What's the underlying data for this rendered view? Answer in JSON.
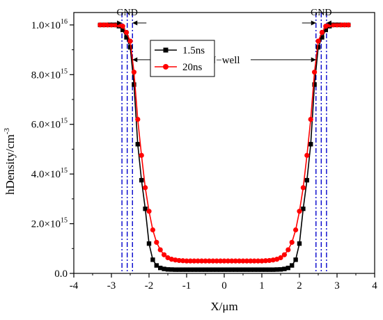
{
  "chart_data": {
    "type": "line",
    "xlabel": "X/μm",
    "ylabel": "hDensity/cm",
    "ylabel_sup": "-3",
    "xlim": [
      -4,
      4
    ],
    "ylim": [
      0,
      1.05e+16
    ],
    "x_ticks": [
      -4,
      -3,
      -2,
      -1,
      0,
      1,
      2,
      3,
      4
    ],
    "x_tick_labels": [
      "-4",
      "-3",
      "-2",
      "-1",
      "0",
      "1",
      "2",
      "3",
      "4"
    ],
    "y_ticks": [
      0,
      2000000000000000.0,
      4000000000000000.0,
      6000000000000000.0,
      8000000000000000.0,
      1e+16
    ],
    "y_tick_labels": [
      {
        "mant": "0.0",
        "exp": ""
      },
      {
        "mant": "2.0×10",
        "exp": "15"
      },
      {
        "mant": "4.0×10",
        "exp": "15"
      },
      {
        "mant": "6.0×10",
        "exp": "15"
      },
      {
        "mant": "8.0×10",
        "exp": "15"
      },
      {
        "mant": "1.0×10",
        "exp": "16"
      }
    ],
    "legend": {
      "placement": "top-left-inside",
      "entries": [
        "1.5ns",
        "20ns"
      ]
    },
    "series": [
      {
        "name": "1.5ns",
        "color": "#000000",
        "marker": "square",
        "x": [
          -3.3,
          -3.2,
          -3.1,
          -3.0,
          -2.9,
          -2.8,
          -2.7,
          -2.6,
          -2.5,
          -2.4,
          -2.3,
          -2.2,
          -2.1,
          -2.0,
          -1.9,
          -1.8,
          -1.7,
          -1.6,
          -1.5,
          -1.4,
          -1.3,
          -1.2,
          -1.1,
          -1.0,
          -0.9,
          -0.8,
          -0.7,
          -0.6,
          -0.5,
          -0.4,
          -0.3,
          -0.2,
          -0.1,
          0.0,
          0.1,
          0.2,
          0.3,
          0.4,
          0.5,
          0.6,
          0.7,
          0.8,
          0.9,
          1.0,
          1.1,
          1.2,
          1.3,
          1.4,
          1.5,
          1.6,
          1.7,
          1.8,
          1.9,
          2.0,
          2.1,
          2.2,
          2.3,
          2.4,
          2.5,
          2.6,
          2.7,
          2.8,
          2.9,
          3.0,
          3.1,
          3.2,
          3.3
        ],
        "y": [
          1e+16,
          1e+16,
          1e+16,
          1e+16,
          1e+16,
          9950000000000000.0,
          9800000000000000.0,
          9500000000000000.0,
          9100000000000000.0,
          7600000000000000.0,
          5200000000000000.0,
          3750000000000000.0,
          2600000000000000.0,
          1200000000000000.0,
          550000000000000.0,
          320000000000000.0,
          220000000000000.0,
          180000000000000.0,
          160000000000000.0,
          155000000000000.0,
          150000000000000.0,
          150000000000000.0,
          150000000000000.0,
          150000000000000.0,
          150000000000000.0,
          150000000000000.0,
          150000000000000.0,
          150000000000000.0,
          150000000000000.0,
          150000000000000.0,
          150000000000000.0,
          150000000000000.0,
          150000000000000.0,
          150000000000000.0,
          150000000000000.0,
          150000000000000.0,
          150000000000000.0,
          150000000000000.0,
          150000000000000.0,
          150000000000000.0,
          150000000000000.0,
          150000000000000.0,
          150000000000000.0,
          150000000000000.0,
          150000000000000.0,
          150000000000000.0,
          150000000000000.0,
          155000000000000.0,
          160000000000000.0,
          180000000000000.0,
          220000000000000.0,
          320000000000000.0,
          550000000000000.0,
          1200000000000000.0,
          2600000000000000.0,
          3750000000000000.0,
          5200000000000000.0,
          7600000000000000.0,
          9100000000000000.0,
          9500000000000000.0,
          9800000000000000.0,
          9950000000000000.0,
          1e+16,
          1e+16,
          1e+16,
          1e+16,
          1e+16
        ]
      },
      {
        "name": "20ns",
        "color": "#ff0000",
        "marker": "circle",
        "x": [
          -3.3,
          -3.2,
          -3.1,
          -3.0,
          -2.9,
          -2.8,
          -2.7,
          -2.6,
          -2.5,
          -2.4,
          -2.3,
          -2.2,
          -2.1,
          -2.0,
          -1.9,
          -1.8,
          -1.7,
          -1.6,
          -1.5,
          -1.4,
          -1.3,
          -1.2,
          -1.1,
          -1.0,
          -0.9,
          -0.8,
          -0.7,
          -0.6,
          -0.5,
          -0.4,
          -0.3,
          -0.2,
          -0.1,
          0.0,
          0.1,
          0.2,
          0.3,
          0.4,
          0.5,
          0.6,
          0.7,
          0.8,
          0.9,
          1.0,
          1.1,
          1.2,
          1.3,
          1.4,
          1.5,
          1.6,
          1.7,
          1.8,
          1.9,
          2.0,
          2.1,
          2.2,
          2.3,
          2.4,
          2.5,
          2.6,
          2.7,
          2.8,
          2.9,
          3.0,
          3.1,
          3.2,
          3.3
        ],
        "y": [
          1e+16,
          1e+16,
          1e+16,
          1e+16,
          1e+16,
          1e+16,
          9950000000000000.0,
          9700000000000000.0,
          9350000000000000.0,
          8100000000000000.0,
          6200000000000000.0,
          4750000000000000.0,
          3450000000000000.0,
          2500000000000000.0,
          1750000000000000.0,
          1250000000000000.0,
          950000000000000.0,
          750000000000000.0,
          630000000000000.0,
          570000000000000.0,
          540000000000000.0,
          520000000000000.0,
          510000000000000.0,
          500000000000000.0,
          500000000000000.0,
          500000000000000.0,
          500000000000000.0,
          500000000000000.0,
          500000000000000.0,
          500000000000000.0,
          500000000000000.0,
          500000000000000.0,
          500000000000000.0,
          500000000000000.0,
          500000000000000.0,
          500000000000000.0,
          500000000000000.0,
          500000000000000.0,
          500000000000000.0,
          500000000000000.0,
          500000000000000.0,
          500000000000000.0,
          500000000000000.0,
          500000000000000.0,
          510000000000000.0,
          520000000000000.0,
          540000000000000.0,
          570000000000000.0,
          630000000000000.0,
          750000000000000.0,
          950000000000000.0,
          1250000000000000.0,
          1750000000000000.0,
          2500000000000000.0,
          3450000000000000.0,
          4750000000000000.0,
          6200000000000000.0,
          8100000000000000.0,
          9350000000000000.0,
          9700000000000000.0,
          9950000000000000.0,
          1e+16,
          1e+16,
          1e+16,
          1e+16,
          1e+16,
          1e+16
        ]
      }
    ],
    "reference_lines": {
      "color": "#0000cc",
      "x": [
        -2.72,
        -2.58,
        -2.44,
        2.44,
        2.58,
        2.72
      ]
    },
    "annotations": [
      {
        "text": "GND",
        "x": -2.58,
        "span": [
          -2.72,
          -2.44
        ]
      },
      {
        "text": "GND",
        "x": 2.58,
        "span": [
          2.44,
          2.72
        ]
      },
      {
        "text": "N−well",
        "y": 8600000000000000.0,
        "span": [
          -2.44,
          2.44
        ]
      }
    ]
  }
}
